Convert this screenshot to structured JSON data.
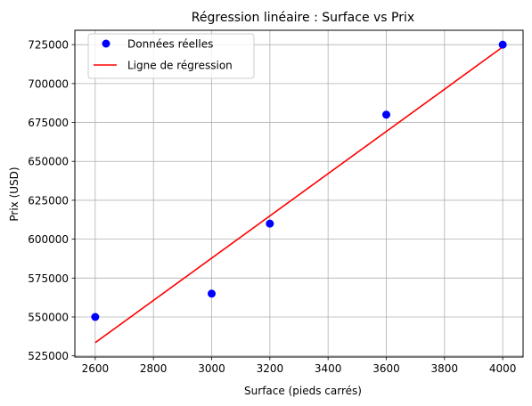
{
  "chart_data": {
    "type": "scatter",
    "title": "Régression linéaire : Surface vs Prix",
    "xlabel": "Surface (pieds carrés)",
    "ylabel": "Prix (USD)",
    "xlim": [
      2530,
      4070
    ],
    "ylim": [
      524250,
      734250
    ],
    "xticks": [
      2600,
      2800,
      3000,
      3200,
      3400,
      3600,
      3800,
      4000
    ],
    "yticks": [
      525000,
      550000,
      575000,
      600000,
      625000,
      650000,
      675000,
      700000,
      725000
    ],
    "grid": true,
    "legend_position": "upper-left",
    "series": [
      {
        "name": "Données réelles",
        "kind": "scatter",
        "color": "#0000ff",
        "points": [
          {
            "x": 2600,
            "y": 550000
          },
          {
            "x": 3000,
            "y": 565000
          },
          {
            "x": 3200,
            "y": 610000
          },
          {
            "x": 3600,
            "y": 680000
          },
          {
            "x": 4000,
            "y": 725000
          }
        ]
      },
      {
        "name": "Ligne de régression",
        "kind": "line",
        "color": "#ff0000",
        "points": [
          {
            "x": 2600,
            "y": 533500
          },
          {
            "x": 4000,
            "y": 723500
          }
        ]
      }
    ]
  }
}
